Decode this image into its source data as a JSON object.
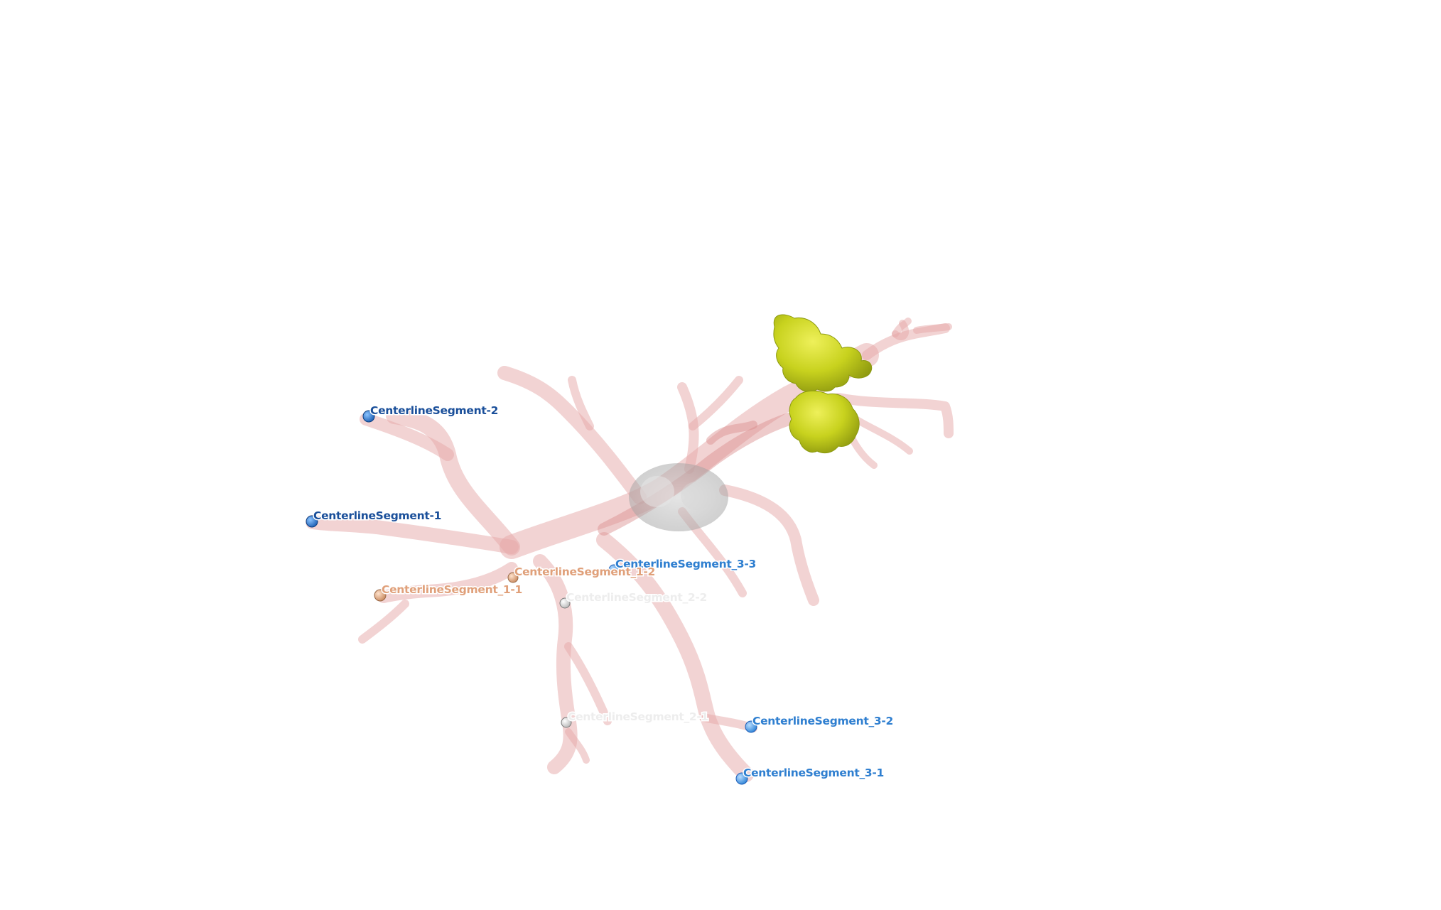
{
  "view": {
    "background_color": "#ffffff",
    "vessel_color": "#e6a8a8",
    "tumor_color": "#c8d21e"
  },
  "markups": [
    {
      "id": "m-cs2",
      "label": "CenterlineSegment-2",
      "color": "#1f5fb8",
      "text_color": "#1a4f9a"
    },
    {
      "id": "m-cs1",
      "label": "CenterlineSegment-1",
      "color": "#1f5fb8",
      "text_color": "#1a4f9a"
    },
    {
      "id": "m-cs33",
      "label": "CenterlineSegment_3-3",
      "color": "#3a8fe0",
      "text_color": "#2f7fd0"
    },
    {
      "id": "m-cs12",
      "label": "CenterlineSegment_1-2",
      "color": "#e8b08a",
      "text_color": "#e0a07a"
    },
    {
      "id": "m-cs11",
      "label": "CenterlineSegment_1-1",
      "color": "#e8b08a",
      "text_color": "#e0a07a"
    },
    {
      "id": "m-cs22",
      "label": "CenterlineSegment_2-2",
      "color": "#f2f2f2",
      "text_color": "#ededed"
    },
    {
      "id": "m-cs21",
      "label": "CenterlineSegment_2-1",
      "color": "#f2f2f2",
      "text_color": "#ededed"
    },
    {
      "id": "m-cs32",
      "label": "CenterlineSegment_3-2",
      "color": "#3a8fe0",
      "text_color": "#2f7fd0"
    },
    {
      "id": "m-cs31",
      "label": "CenterlineSegment_3-1",
      "color": "#3a8fe0",
      "text_color": "#2f7fd0"
    }
  ]
}
